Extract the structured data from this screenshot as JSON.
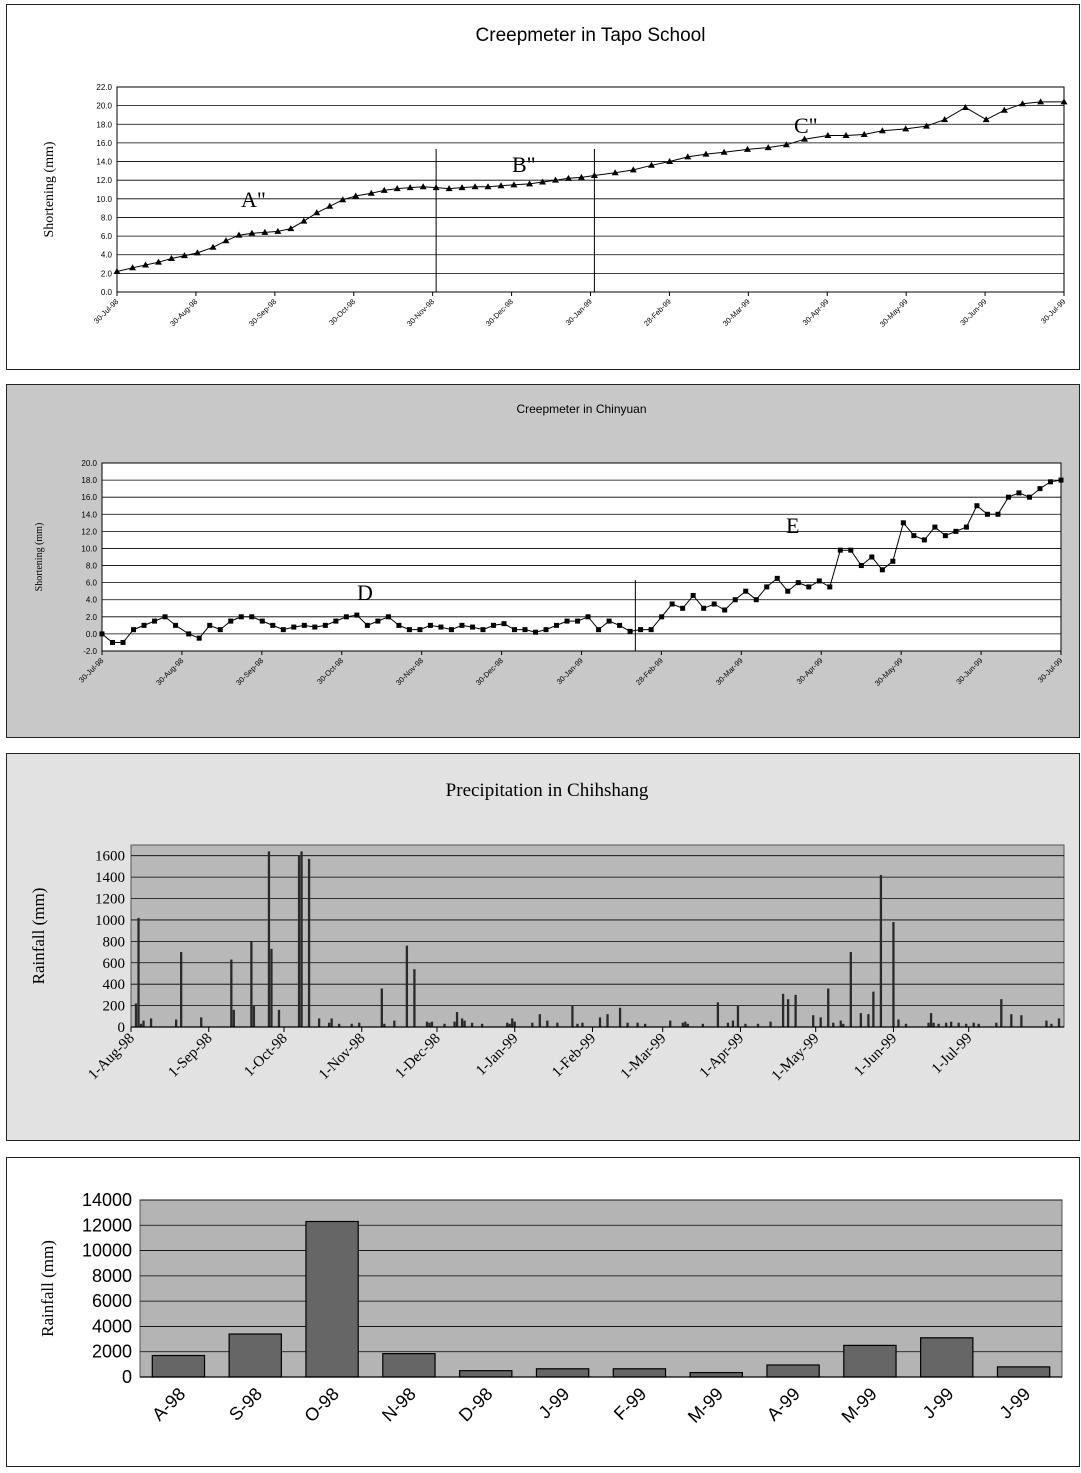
{
  "chart_data": [
    {
      "type": "line",
      "title": "Creepmeter in Tapo School",
      "ylabel": "Shortening (mm)",
      "xlabel": "",
      "ylim": [
        0,
        22
      ],
      "yticks": [
        "0.0",
        "2.0",
        "4.0",
        "6.0",
        "8.0",
        "10.0",
        "12.0",
        "14.0",
        "16.0",
        "18.0",
        "20.0",
        "22.0"
      ],
      "x_tick_labels": [
        "30-Jul-98",
        "30-Aug-98",
        "30-Sep-98",
        "30-Oct-98",
        "30-Nov-98",
        "30-Dec-98",
        "30-Jan-99",
        "28-Feb-99",
        "30-Mar-99",
        "30-Apr-99",
        "30-May-99",
        "30-Jun-99",
        "30-Jul-99"
      ],
      "marker": "triangle",
      "grid": true,
      "annotations": [
        "A\"",
        "B\"",
        "C\""
      ],
      "segment_dividers": [
        "30-Nov-98",
        "30-Jan-99"
      ],
      "series": [
        {
          "x": [
            "1998-07-30",
            "1998-08-05",
            "1998-08-10",
            "1998-08-15",
            "1998-08-20",
            "1998-08-25",
            "1998-08-30",
            "1998-09-05",
            "1998-09-10",
            "1998-09-15",
            "1998-09-20",
            "1998-09-25",
            "1998-09-30",
            "1998-10-05",
            "1998-10-10",
            "1998-10-15",
            "1998-10-20",
            "1998-10-25",
            "1998-10-30",
            "1998-11-05",
            "1998-11-10",
            "1998-11-15",
            "1998-11-20",
            "1998-11-25",
            "1998-11-30",
            "1998-12-05",
            "1998-12-10",
            "1998-12-15",
            "1998-12-20",
            "1998-12-25",
            "1998-12-30",
            "1999-01-05",
            "1999-01-10",
            "1999-01-15",
            "1999-01-20",
            "1999-01-25",
            "1999-01-30",
            "1999-02-07",
            "1999-02-14",
            "1999-02-21",
            "1999-02-28",
            "1999-03-07",
            "1999-03-14",
            "1999-03-21",
            "1999-03-30",
            "1999-04-07",
            "1999-04-14",
            "1999-04-21",
            "1999-04-30",
            "1999-05-07",
            "1999-05-14",
            "1999-05-21",
            "1999-05-30",
            "1999-06-07",
            "1999-06-14",
            "1999-06-22",
            "1999-06-30",
            "1999-07-07",
            "1999-07-14",
            "1999-07-21",
            "1999-07-30"
          ],
          "y": [
            2.2,
            2.6,
            2.9,
            3.2,
            3.6,
            3.9,
            4.2,
            4.8,
            5.5,
            6.1,
            6.3,
            6.4,
            6.5,
            6.8,
            7.6,
            8.5,
            9.2,
            9.9,
            10.3,
            10.6,
            10.9,
            11.1,
            11.2,
            11.3,
            11.2,
            11.1,
            11.2,
            11.3,
            11.3,
            11.4,
            11.5,
            11.6,
            11.8,
            12.0,
            12.2,
            12.3,
            12.5,
            12.8,
            13.1,
            13.6,
            14.0,
            14.5,
            14.8,
            15.0,
            15.3,
            15.5,
            15.8,
            16.4,
            16.8,
            16.8,
            16.9,
            17.3,
            17.5,
            17.8,
            18.5,
            19.8,
            18.5,
            19.5,
            20.2,
            20.4,
            20.4
          ]
        }
      ]
    },
    {
      "type": "line",
      "title": "Creepmeter in Chinyuan",
      "ylabel": "Shortening (mm)",
      "xlabel": "",
      "ylim": [
        -2,
        20
      ],
      "yticks": [
        "-2.0",
        "0.0",
        "2.0",
        "4.0",
        "6.0",
        "8.0",
        "10.0",
        "12.0",
        "14.0",
        "16.0",
        "18.0",
        "20.0"
      ],
      "x_tick_labels": [
        "30-Jul-98",
        "30-Aug-98",
        "30-Sep-98",
        "30-Oct-98",
        "30-Nov-98",
        "30-Dec-98",
        "30-Jan-99",
        "28-Feb-99",
        "30-Mar-99",
        "30-Apr-99",
        "30-May-99",
        "30-Jun-99",
        "30-Jul-99"
      ],
      "marker": "square",
      "grid": true,
      "annotations": [
        "D",
        "E"
      ],
      "segment_dividers": [
        "18-Feb-99"
      ],
      "series": [
        {
          "x": [
            "1998-07-30",
            "1998-08-03",
            "1998-08-07",
            "1998-08-11",
            "1998-08-15",
            "1998-08-19",
            "1998-08-23",
            "1998-08-27",
            "1998-09-01",
            "1998-09-05",
            "1998-09-09",
            "1998-09-13",
            "1998-09-17",
            "1998-09-21",
            "1998-09-25",
            "1998-09-29",
            "1998-10-03",
            "1998-10-07",
            "1998-10-11",
            "1998-10-15",
            "1998-10-19",
            "1998-10-23",
            "1998-10-27",
            "1998-10-31",
            "1998-11-04",
            "1998-11-08",
            "1998-11-12",
            "1998-11-16",
            "1998-11-20",
            "1998-11-24",
            "1998-11-28",
            "1998-12-02",
            "1998-12-06",
            "1998-12-10",
            "1998-12-14",
            "1998-12-18",
            "1998-12-22",
            "1998-12-26",
            "1998-12-30",
            "1999-01-03",
            "1999-01-07",
            "1999-01-11",
            "1999-01-15",
            "1999-01-19",
            "1999-01-23",
            "1999-01-27",
            "1999-01-31",
            "1999-02-04",
            "1999-02-08",
            "1999-02-12",
            "1999-02-16",
            "1999-02-20",
            "1999-02-24",
            "1999-02-28",
            "1999-03-04",
            "1999-03-08",
            "1999-03-12",
            "1999-03-16",
            "1999-03-20",
            "1999-03-24",
            "1999-03-28",
            "1999-04-01",
            "1999-04-05",
            "1999-04-09",
            "1999-04-13",
            "1999-04-17",
            "1999-04-21",
            "1999-04-25",
            "1999-04-29",
            "1999-05-03",
            "1999-05-07",
            "1999-05-11",
            "1999-05-15",
            "1999-05-19",
            "1999-05-23",
            "1999-05-27",
            "1999-05-31",
            "1999-06-04",
            "1999-06-08",
            "1999-06-12",
            "1999-06-16",
            "1999-06-20",
            "1999-06-24",
            "1999-06-28",
            "1999-07-02",
            "1999-07-06",
            "1999-07-10",
            "1999-07-14",
            "1999-07-18",
            "1999-07-22",
            "1999-07-26",
            "1999-07-30"
          ],
          "y": [
            0.0,
            -1.0,
            -1.0,
            0.5,
            1.0,
            1.5,
            2.0,
            1.0,
            0.0,
            -0.5,
            1.0,
            0.5,
            1.5,
            2.0,
            2.0,
            1.5,
            1.0,
            0.5,
            0.8,
            1.0,
            0.8,
            1.0,
            1.5,
            2.0,
            2.2,
            1.0,
            1.5,
            2.0,
            1.0,
            0.5,
            0.5,
            1.0,
            0.8,
            0.5,
            1.0,
            0.8,
            0.5,
            1.0,
            1.2,
            0.5,
            0.5,
            0.2,
            0.5,
            1.0,
            1.5,
            1.5,
            2.0,
            0.5,
            1.5,
            1.0,
            0.3,
            0.5,
            0.5,
            2.0,
            3.5,
            3.0,
            4.5,
            3.0,
            3.5,
            2.8,
            4.0,
            5.0,
            4.0,
            5.5,
            6.5,
            5.0,
            6.0,
            5.5,
            6.2,
            5.5,
            9.8,
            9.8,
            8.0,
            9.0,
            7.5,
            8.5,
            13.0,
            11.5,
            11.0,
            12.5,
            11.5,
            12.0,
            12.5,
            15.0,
            14.0,
            14.0,
            16.0,
            16.5,
            16.0,
            17.0,
            17.8,
            18.0
          ]
        }
      ]
    },
    {
      "type": "bar",
      "title": "Precipitation in Chihshang",
      "ylabel": "Rainfall (mm)",
      "xlabel": "",
      "ylim": [
        0,
        1700
      ],
      "yticks": [
        "0",
        "200",
        "400",
        "600",
        "800",
        "1000",
        "1200",
        "1400",
        "1600"
      ],
      "x_tick_labels": [
        "1-Aug-98",
        "1-Sep-98",
        "1-Oct-98",
        "1-Nov-98",
        "1-Dec-98",
        "1-Jan-99",
        "1-Feb-99",
        "1-Mar-99",
        "1-Apr-99",
        "1-May-99",
        "1-Jun-99",
        "1-Jul-99"
      ],
      "day_start": "1998-08-01",
      "grid": true,
      "series": [
        {
          "x_day": [
            2,
            3,
            4,
            5,
            8,
            18,
            20,
            28,
            40,
            41,
            48,
            49,
            55,
            56,
            59,
            67,
            68,
            71,
            75,
            79,
            80,
            83,
            88,
            91,
            100,
            101,
            105,
            110,
            113,
            118,
            119,
            120,
            125,
            129,
            130,
            132,
            133,
            136,
            140,
            150,
            151,
            152,
            153,
            160,
            163,
            166,
            170,
            176,
            178,
            180,
            187,
            190,
            195,
            198,
            202,
            205,
            215,
            220,
            221,
            222,
            228,
            234,
            238,
            240,
            242,
            245,
            250,
            255,
            260,
            262,
            265,
            272,
            275,
            278,
            280,
            283,
            284,
            287,
            291,
            294,
            296,
            299,
            304,
            306,
            309,
            318,
            319,
            320,
            322,
            325,
            327,
            330,
            333,
            336,
            338,
            345,
            347,
            351,
            355,
            365,
            367,
            370
          ],
          "values": [
            220,
            1020,
            30,
            60,
            80,
            70,
            700,
            90,
            630,
            160,
            800,
            200,
            1640,
            730,
            160,
            1600,
            1640,
            1570,
            80,
            40,
            80,
            30,
            30,
            40,
            360,
            30,
            60,
            760,
            540,
            50,
            40,
            50,
            30,
            50,
            140,
            80,
            60,
            40,
            30,
            40,
            30,
            80,
            50,
            40,
            120,
            60,
            40,
            200,
            30,
            40,
            90,
            120,
            180,
            40,
            40,
            30,
            60,
            40,
            50,
            30,
            30,
            230,
            40,
            60,
            200,
            30,
            30,
            50,
            310,
            260,
            300,
            110,
            90,
            360,
            40,
            60,
            30,
            700,
            130,
            120,
            330,
            1420,
            980,
            70,
            30,
            40,
            130,
            40,
            30,
            40,
            50,
            40,
            30,
            40,
            30,
            40,
            260,
            120,
            110,
            60,
            30,
            80
          ]
        }
      ]
    },
    {
      "type": "bar",
      "title": "",
      "ylabel": "Rainfall (mm)",
      "xlabel": "",
      "ylim": [
        0,
        14000
      ],
      "yticks": [
        "0",
        "2000",
        "4000",
        "6000",
        "8000",
        "10000",
        "12000",
        "14000"
      ],
      "categories": [
        "A-98",
        "S-98",
        "O-98",
        "N-98",
        "D-98",
        "J-99",
        "F-99",
        "M-99",
        "A-99",
        "M-99",
        "J-99",
        "J-99"
      ],
      "grid": true,
      "series": [
        {
          "values": [
            1700,
            3400,
            12300,
            1850,
            500,
            650,
            650,
            350,
            950,
            2500,
            3100,
            800
          ]
        }
      ]
    }
  ]
}
